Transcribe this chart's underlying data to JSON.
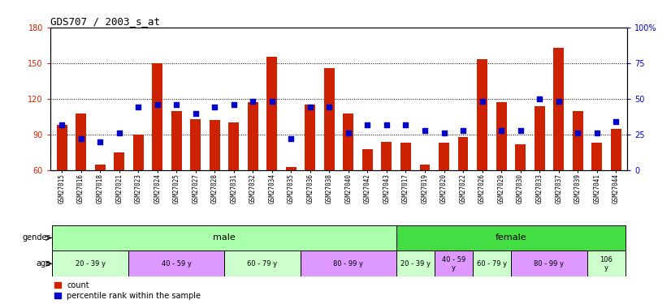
{
  "title": "GDS707 / 2003_s_at",
  "samples": [
    "GSM27015",
    "GSM27016",
    "GSM27018",
    "GSM27021",
    "GSM27023",
    "GSM27024",
    "GSM27025",
    "GSM27027",
    "GSM27028",
    "GSM27031",
    "GSM27032",
    "GSM27034",
    "GSM27035",
    "GSM27036",
    "GSM27038",
    "GSM27040",
    "GSM27042",
    "GSM27043",
    "GSM27017",
    "GSM27019",
    "GSM27020",
    "GSM27022",
    "GSM27026",
    "GSM27029",
    "GSM27030",
    "GSM27033",
    "GSM27037",
    "GSM27039",
    "GSM27041",
    "GSM27044"
  ],
  "counts": [
    98,
    108,
    65,
    75,
    90,
    150,
    110,
    103,
    102,
    100,
    117,
    155,
    63,
    115,
    146,
    108,
    78,
    84,
    83,
    65,
    83,
    88,
    153,
    117,
    82,
    114,
    163,
    110,
    83,
    95
  ],
  "percentiles": [
    32,
    22,
    20,
    26,
    44,
    46,
    46,
    40,
    44,
    46,
    48,
    48,
    22,
    44,
    44,
    26,
    32,
    32,
    32,
    28,
    26,
    28,
    48,
    28,
    28,
    50,
    48,
    26,
    26,
    34
  ],
  "ymin": 60,
  "ymax": 180,
  "yticks_left": [
    60,
    90,
    120,
    150,
    180
  ],
  "yticks_right": [
    0,
    25,
    50,
    75,
    100
  ],
  "bar_color": "#cc2200",
  "dot_color": "#0000cc",
  "age_groups": [
    {
      "label": "20 - 39 y",
      "span": [
        0,
        3
      ],
      "color": "#ccffcc"
    },
    {
      "label": "40 - 59 y",
      "span": [
        4,
        8
      ],
      "color": "#dd99ff"
    },
    {
      "label": "60 - 79 y",
      "span": [
        9,
        12
      ],
      "color": "#ccffcc"
    },
    {
      "label": "80 - 99 y",
      "span": [
        13,
        17
      ],
      "color": "#dd99ff"
    },
    {
      "label": "20 - 39 y",
      "span": [
        18,
        19
      ],
      "color": "#ccffcc"
    },
    {
      "label": "40 - 59\ny",
      "span": [
        20,
        21
      ],
      "color": "#dd99ff"
    },
    {
      "label": "60 - 79 y",
      "span": [
        22,
        23
      ],
      "color": "#ccffcc"
    },
    {
      "label": "80 - 99 y",
      "span": [
        24,
        27
      ],
      "color": "#dd99ff"
    },
    {
      "label": "106\ny",
      "span": [
        28,
        29
      ],
      "color": "#ccffcc"
    }
  ],
  "male_color": "#aaffaa",
  "female_color": "#44dd44",
  "male_span": [
    0,
    17
  ],
  "female_span": [
    18,
    29
  ],
  "dot_size": 18,
  "bar_width": 0.55
}
